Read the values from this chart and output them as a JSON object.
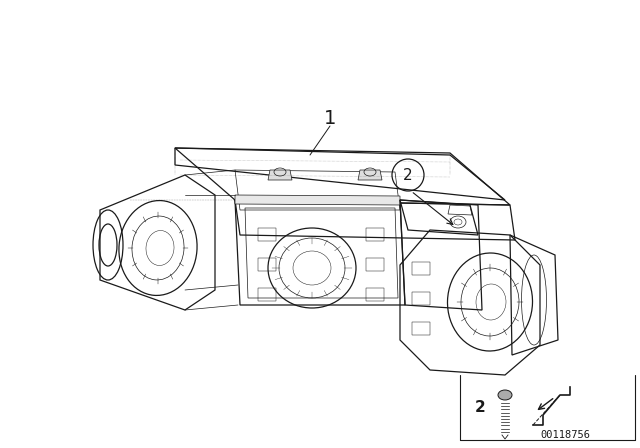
{
  "background_color": "#ffffff",
  "fig_width": 6.4,
  "fig_height": 4.48,
  "dpi": 100,
  "part_number": "00118756",
  "label_1": "1",
  "label_2": "2",
  "line_color": "#1a1a1a",
  "lw_main": 0.9,
  "lw_detail": 0.5,
  "lw_thin": 0.35
}
